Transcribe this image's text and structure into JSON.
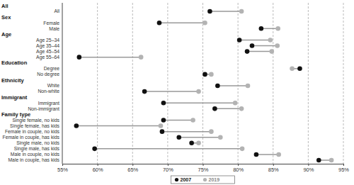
{
  "chart_data": {
    "type": "dumbbell",
    "categories": [
      "All",
      "Female",
      "Male",
      "Age 25–34",
      "Age 35–44",
      "Age 45–54",
      "Age 55–64",
      "Degree",
      "No degree",
      "White",
      "Non-white",
      "Immigrant",
      "Non-immigrant",
      "Single female, no kids",
      "Single female, has kids",
      "Female in couple, no kids",
      "Female in couple,  has kids",
      "Single male, no kids",
      "Single male, has kids",
      "Male in couple, no kids",
      "Male in couple, has kids"
    ],
    "category_groups": [
      "All",
      "Sex",
      "Sex",
      "Age",
      "Age",
      "Age",
      "Age",
      "Education",
      "Education",
      "Ethnicity",
      "Ethnicity",
      "Immigrant",
      "Immigrant",
      "Family type",
      "Family type",
      "Family type",
      "Family type",
      "Family type",
      "Family type",
      "Family type",
      "Family type"
    ],
    "series": [
      {
        "name": "2007",
        "color": "#111111",
        "values": [
          76.0,
          68.8,
          83.3,
          80.2,
          82.0,
          81.3,
          57.4,
          88.8,
          75.3,
          77.1,
          66.7,
          69.4,
          76.7,
          69.4,
          57.0,
          69.2,
          71.6,
          73.4,
          59.6,
          82.6,
          91.5
        ]
      },
      {
        "name": "2019",
        "color": "#b3b3b3",
        "values": [
          80.5,
          75.3,
          85.7,
          84.6,
          85.6,
          84.8,
          66.2,
          87.7,
          76.2,
          81.4,
          74.4,
          79.6,
          80.5,
          73.6,
          69.0,
          76.2,
          77.5,
          74.4,
          80.6,
          85.8,
          93.3
        ]
      }
    ],
    "xlim": [
      55,
      95
    ],
    "xticks": [
      {
        "value": 55,
        "label": "55%"
      },
      {
        "value": 60,
        "label": "60%"
      },
      {
        "value": 65,
        "label": "65%"
      },
      {
        "value": 70,
        "label": "70%"
      },
      {
        "value": 75,
        "label": "75%"
      },
      {
        "value": 80,
        "label": "80%"
      },
      {
        "value": 85,
        "label": "85%"
      },
      {
        "value": 90,
        "label": "90%"
      },
      {
        "value": 95,
        "label": "95%"
      }
    ],
    "grid": true,
    "legend": "bottom"
  }
}
